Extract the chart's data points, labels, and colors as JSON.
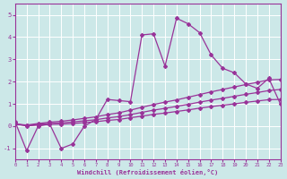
{
  "xlabel": "Windchill (Refroidissement éolien,°C)",
  "background_color": "#cce8e8",
  "grid_color": "#b8d8d8",
  "line_color": "#993399",
  "xmin": 0,
  "xmax": 23,
  "ymin": -1.5,
  "ymax": 5.5,
  "yticks": [
    -1,
    0,
    1,
    2,
    3,
    4,
    5
  ],
  "xticks": [
    0,
    1,
    2,
    3,
    4,
    5,
    6,
    7,
    8,
    9,
    10,
    11,
    12,
    13,
    14,
    15,
    16,
    17,
    18,
    19,
    20,
    21,
    22,
    23
  ],
  "line1_x": [
    0,
    1,
    2,
    3,
    4,
    5,
    6,
    7,
    8,
    9,
    10,
    11,
    12,
    13,
    14,
    15,
    16,
    17,
    18,
    19,
    20,
    21,
    22,
    23
  ],
  "line1_y": [
    0.2,
    -1.1,
    0.0,
    0.1,
    -1.0,
    -0.8,
    0.0,
    0.3,
    1.2,
    1.15,
    1.1,
    4.1,
    4.15,
    2.7,
    4.85,
    4.6,
    4.2,
    3.2,
    2.6,
    2.4,
    1.9,
    1.7,
    2.15,
    1.0
  ],
  "line2_x": [
    0,
    1,
    2,
    3,
    4,
    5,
    6,
    7,
    8,
    9,
    10,
    11,
    12,
    13,
    14,
    15,
    16,
    17,
    18,
    19,
    20,
    21,
    22,
    23
  ],
  "line2_y": [
    0.1,
    0.05,
    0.12,
    0.18,
    0.22,
    0.28,
    0.35,
    0.42,
    0.52,
    0.6,
    0.72,
    0.85,
    0.97,
    1.08,
    1.18,
    1.3,
    1.42,
    1.54,
    1.65,
    1.76,
    1.87,
    1.97,
    2.08,
    2.1
  ],
  "line3_x": [
    0,
    1,
    2,
    3,
    4,
    5,
    6,
    7,
    8,
    9,
    10,
    11,
    12,
    13,
    14,
    15,
    16,
    17,
    18,
    19,
    20,
    21,
    22,
    23
  ],
  "line3_y": [
    0.1,
    0.03,
    0.08,
    0.12,
    0.15,
    0.19,
    0.24,
    0.29,
    0.37,
    0.43,
    0.52,
    0.62,
    0.72,
    0.8,
    0.89,
    0.98,
    1.08,
    1.17,
    1.25,
    1.34,
    1.43,
    1.51,
    1.6,
    1.65
  ],
  "line4_x": [
    0,
    1,
    2,
    3,
    4,
    5,
    6,
    7,
    8,
    9,
    10,
    11,
    12,
    13,
    14,
    15,
    16,
    17,
    18,
    19,
    20,
    21,
    22,
    23
  ],
  "line4_y": [
    0.1,
    0.01,
    0.05,
    0.08,
    0.09,
    0.12,
    0.16,
    0.2,
    0.26,
    0.3,
    0.38,
    0.45,
    0.53,
    0.59,
    0.66,
    0.73,
    0.81,
    0.88,
    0.94,
    1.0,
    1.07,
    1.13,
    1.19,
    1.2
  ]
}
